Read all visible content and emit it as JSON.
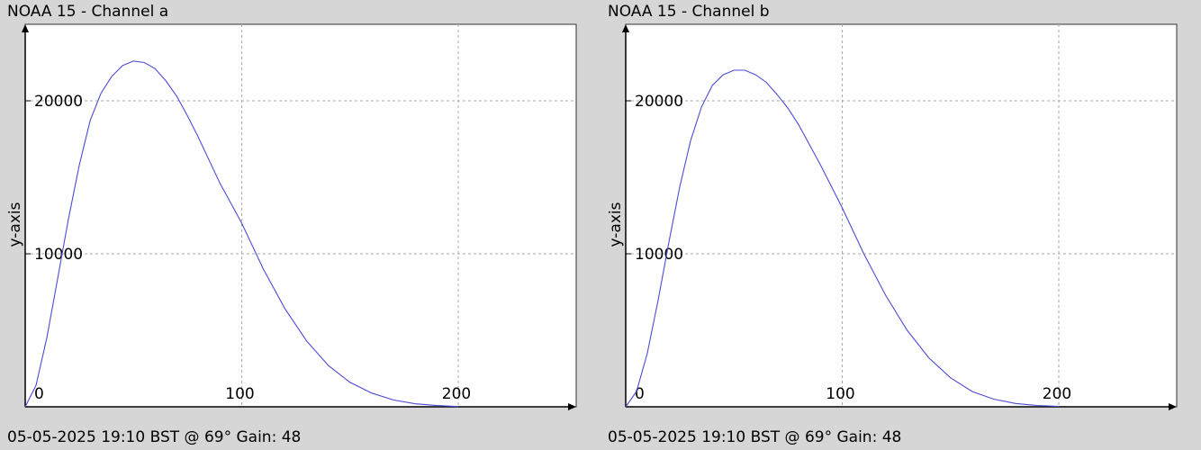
{
  "chart_data": [
    {
      "type": "line",
      "title": "NOAA 15 - Channel a",
      "subtitle": "05-05-2025 19:10 BST @ 69° Gain: 48",
      "xlabel": "",
      "ylabel": "y-axis",
      "xlim": [
        0,
        255
      ],
      "ylim": [
        0,
        25000
      ],
      "xticks": [
        0,
        100,
        200
      ],
      "yticks": [
        10000,
        20000
      ],
      "grid": true,
      "line_color": "#4b4bd6",
      "series": [
        {
          "x": [
            0,
            5,
            10,
            15,
            20,
            25,
            30,
            35,
            40,
            45,
            50,
            55,
            60,
            65,
            70,
            75,
            80,
            85,
            90,
            95,
            100,
            110,
            120,
            130,
            140,
            150,
            160,
            170,
            180,
            190,
            200
          ],
          "values": [
            0,
            1400,
            4500,
            8400,
            12300,
            15800,
            18700,
            20500,
            21600,
            22300,
            22600,
            22500,
            22100,
            21300,
            20300,
            19000,
            17600,
            16100,
            14600,
            13300,
            12000,
            9000,
            6400,
            4300,
            2700,
            1600,
            900,
            450,
            200,
            80,
            20
          ]
        }
      ]
    },
    {
      "type": "line",
      "title": "NOAA 15 - Channel b",
      "subtitle": "05-05-2025 19:10 BST @ 69° Gain: 48",
      "xlabel": "",
      "ylabel": "y-axis",
      "xlim": [
        0,
        255
      ],
      "ylim": [
        0,
        25000
      ],
      "xticks": [
        0,
        100,
        200
      ],
      "yticks": [
        10000,
        20000
      ],
      "grid": true,
      "line_color": "#4b4bd6",
      "series": [
        {
          "x": [
            0,
            5,
            10,
            15,
            20,
            25,
            30,
            35,
            40,
            45,
            50,
            55,
            60,
            65,
            70,
            75,
            80,
            85,
            90,
            95,
            100,
            110,
            120,
            130,
            140,
            150,
            160,
            170,
            180,
            190,
            200
          ],
          "values": [
            0,
            1000,
            3500,
            7000,
            10800,
            14400,
            17400,
            19600,
            21000,
            21700,
            22000,
            22000,
            21700,
            21200,
            20400,
            19500,
            18400,
            17100,
            15800,
            14400,
            13000,
            10000,
            7300,
            5000,
            3200,
            1900,
            1000,
            500,
            220,
            90,
            25
          ]
        }
      ]
    }
  ]
}
